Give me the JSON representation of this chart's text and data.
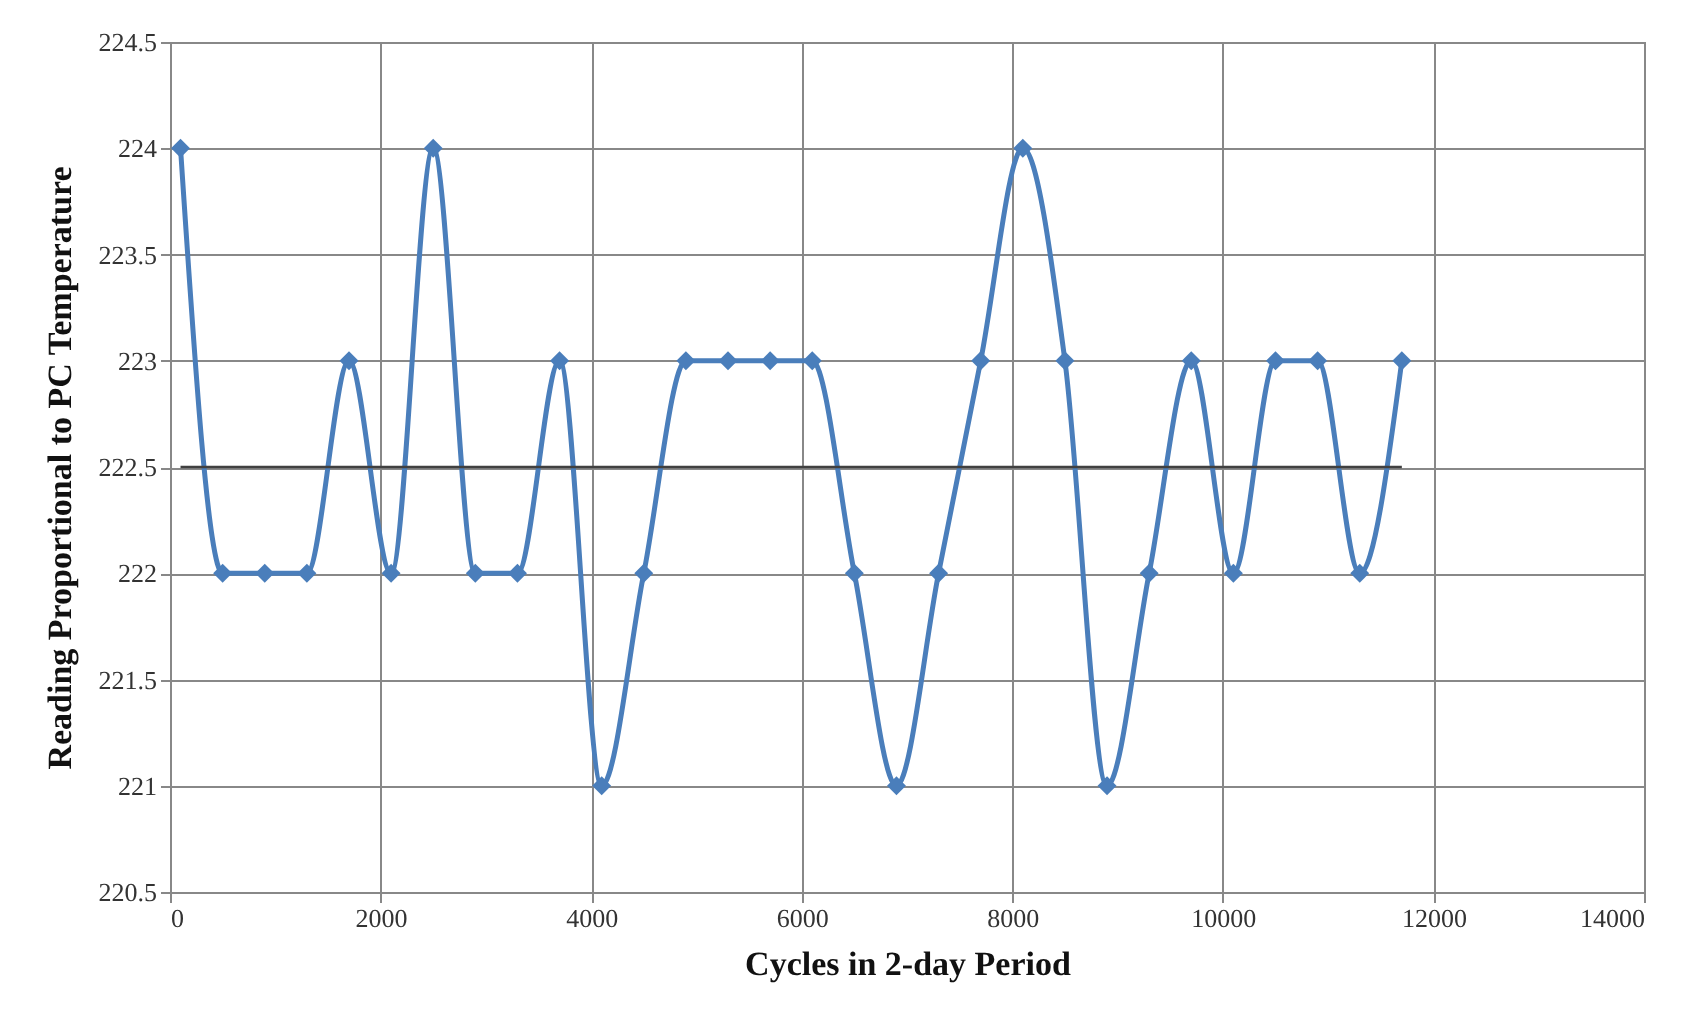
{
  "chart_data": {
    "type": "line",
    "xlabel": "Cycles in 2-day Period",
    "ylabel": "Reading Proportional to PC Temperature",
    "x": [
      100,
      500,
      900,
      1300,
      1700,
      2100,
      2500,
      2900,
      3300,
      3700,
      4100,
      4500,
      4900,
      5300,
      5700,
      6100,
      6500,
      6900,
      7300,
      7700,
      8100,
      8500,
      8900,
      9300,
      9700,
      10100,
      10500,
      10900,
      11300,
      11700
    ],
    "series": [
      {
        "color": "#4a7ebb",
        "marker": "diamond",
        "values": [
          224,
          222,
          222,
          222,
          223,
          222,
          224,
          222,
          222,
          223,
          221,
          222,
          223,
          223,
          223,
          223,
          222,
          221,
          222,
          223,
          224,
          223,
          221,
          222,
          223,
          222,
          223,
          223,
          222,
          223
        ]
      },
      {
        "color": "#404040",
        "marker": "none",
        "x": [
          100,
          11700
        ],
        "values": [
          222.5,
          222.5
        ]
      }
    ],
    "xlim": [
      0,
      14000
    ],
    "xticks": [
      0,
      2000,
      4000,
      6000,
      8000,
      10000,
      12000,
      14000
    ],
    "ylim": [
      220.5,
      224.5
    ],
    "yticks": [
      220.5,
      221,
      221.5,
      222,
      222.5,
      223,
      223.5,
      224,
      224.5
    ],
    "grid": true
  }
}
